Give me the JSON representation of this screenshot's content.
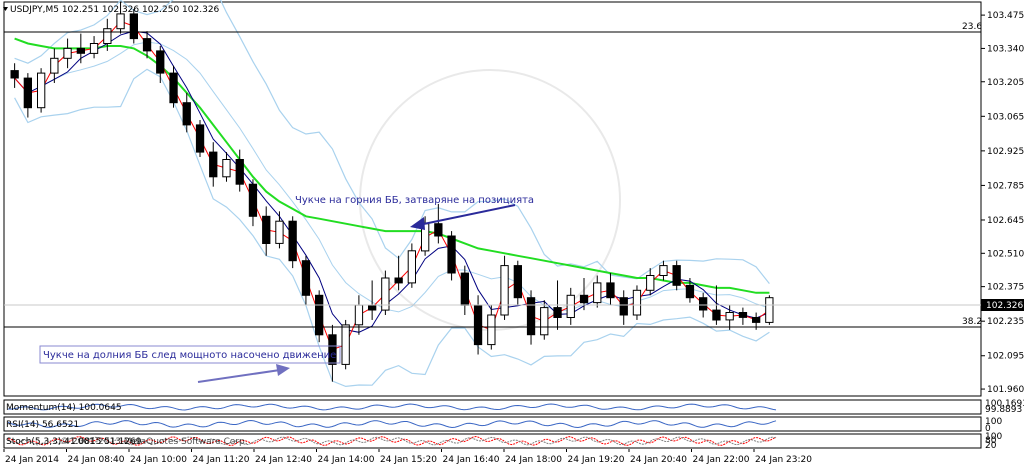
{
  "header": {
    "symbol_line": "USDJPY,M5  102.251 102.326 102.250 102.326"
  },
  "levels": {
    "fib_top_label": "23.6",
    "fib_bottom_label": "38.2",
    "current_price": "102.326"
  },
  "annotations": {
    "upper": "Чукче на горния ББ, затваряне на позицията",
    "lower": "Чукче на долния ББ след мощното насочено движение"
  },
  "indicators": {
    "momentum_label": "Momentum(14) 100.0645",
    "momentum_scale_values": [
      "100.1693",
      "99.8893"
    ],
    "rsi_label": "RSI(14) 56.6521",
    "rsi_scale_values": [
      "100",
      "0"
    ],
    "stoch_label": "Stoch(5,3,3) 41.0815 51.1269",
    "stoch_overlap_text": "© 2001-2013 MetaQuotes Software Corp.",
    "stoch_scale_values": [
      "100",
      "80",
      "20"
    ]
  },
  "colors": {
    "candle": "#000000",
    "ma_fast": "#ff0000",
    "ma_mid": "#000080",
    "ma_long": "#22dd22",
    "bollinger": "#a9d2ee",
    "indicator_line": "#3a66c4",
    "stoch_main": "#ff0000",
    "stoch_signal": "#808080",
    "arrow": "#7070c0"
  },
  "chart_data": {
    "type": "candlestick",
    "symbol": "USDJPY",
    "timeframe": "M5",
    "price_ticks": [
      "103.475",
      "103.340",
      "103.205",
      "103.065",
      "102.925",
      "102.785",
      "102.645",
      "102.510",
      "102.375",
      "102.235",
      "102.095",
      "101.960"
    ],
    "time_ticks": [
      "24 Jan 2014",
      "24 Jan 08:40",
      "24 Jan 10:00",
      "24 Jan 11:20",
      "24 Jan 12:40",
      "24 Jan 14:00",
      "24 Jan 15:20",
      "24 Jan 16:40",
      "24 Jan 18:00",
      "24 Jan 19:20",
      "24 Jan 20:40",
      "24 Jan 22:00",
      "24 Jan 23:20"
    ],
    "ylim": [
      101.94,
      103.52
    ],
    "fib_levels": [
      103.505,
      102.246
    ],
    "candles": [
      {
        "o": 103.25,
        "h": 103.28,
        "l": 103.18,
        "c": 103.22
      },
      {
        "o": 103.22,
        "h": 103.24,
        "l": 103.06,
        "c": 103.1
      },
      {
        "o": 103.1,
        "h": 103.26,
        "l": 103.08,
        "c": 103.24
      },
      {
        "o": 103.24,
        "h": 103.34,
        "l": 103.2,
        "c": 103.3
      },
      {
        "o": 103.3,
        "h": 103.38,
        "l": 103.26,
        "c": 103.34
      },
      {
        "o": 103.34,
        "h": 103.4,
        "l": 103.28,
        "c": 103.32
      },
      {
        "o": 103.32,
        "h": 103.39,
        "l": 103.3,
        "c": 103.36
      },
      {
        "o": 103.36,
        "h": 103.46,
        "l": 103.33,
        "c": 103.42
      },
      {
        "o": 103.42,
        "h": 103.53,
        "l": 103.4,
        "c": 103.48
      },
      {
        "o": 103.48,
        "h": 103.5,
        "l": 103.36,
        "c": 103.38
      },
      {
        "o": 103.38,
        "h": 103.41,
        "l": 103.3,
        "c": 103.33
      },
      {
        "o": 103.33,
        "h": 103.35,
        "l": 103.2,
        "c": 103.24
      },
      {
        "o": 103.24,
        "h": 103.27,
        "l": 103.1,
        "c": 103.12
      },
      {
        "o": 103.12,
        "h": 103.16,
        "l": 103.0,
        "c": 103.03
      },
      {
        "o": 103.03,
        "h": 103.05,
        "l": 102.9,
        "c": 102.92
      },
      {
        "o": 102.92,
        "h": 102.96,
        "l": 102.78,
        "c": 102.82
      },
      {
        "o": 102.82,
        "h": 102.92,
        "l": 102.8,
        "c": 102.89
      },
      {
        "o": 102.89,
        "h": 102.93,
        "l": 102.76,
        "c": 102.79
      },
      {
        "o": 102.79,
        "h": 102.81,
        "l": 102.62,
        "c": 102.66
      },
      {
        "o": 102.66,
        "h": 102.7,
        "l": 102.5,
        "c": 102.55
      },
      {
        "o": 102.55,
        "h": 102.68,
        "l": 102.53,
        "c": 102.64
      },
      {
        "o": 102.64,
        "h": 102.66,
        "l": 102.45,
        "c": 102.48
      },
      {
        "o": 102.48,
        "h": 102.5,
        "l": 102.3,
        "c": 102.34
      },
      {
        "o": 102.34,
        "h": 102.36,
        "l": 102.15,
        "c": 102.18
      },
      {
        "o": 102.18,
        "h": 102.22,
        "l": 101.99,
        "c": 102.06
      },
      {
        "o": 102.06,
        "h": 102.24,
        "l": 102.04,
        "c": 102.22
      },
      {
        "o": 102.22,
        "h": 102.34,
        "l": 102.18,
        "c": 102.3
      },
      {
        "o": 102.3,
        "h": 102.4,
        "l": 102.24,
        "c": 102.28
      },
      {
        "o": 102.28,
        "h": 102.44,
        "l": 102.26,
        "c": 102.41
      },
      {
        "o": 102.41,
        "h": 102.5,
        "l": 102.36,
        "c": 102.39
      },
      {
        "o": 102.39,
        "h": 102.55,
        "l": 102.37,
        "c": 102.52
      },
      {
        "o": 102.52,
        "h": 102.66,
        "l": 102.5,
        "c": 102.63
      },
      {
        "o": 102.63,
        "h": 102.71,
        "l": 102.55,
        "c": 102.58
      },
      {
        "o": 102.58,
        "h": 102.6,
        "l": 102.4,
        "c": 102.43
      },
      {
        "o": 102.43,
        "h": 102.46,
        "l": 102.26,
        "c": 102.3
      },
      {
        "o": 102.3,
        "h": 102.34,
        "l": 102.1,
        "c": 102.14
      },
      {
        "o": 102.14,
        "h": 102.3,
        "l": 102.12,
        "c": 102.26
      },
      {
        "o": 102.26,
        "h": 102.5,
        "l": 102.24,
        "c": 102.46
      },
      {
        "o": 102.46,
        "h": 102.48,
        "l": 102.3,
        "c": 102.33
      },
      {
        "o": 102.33,
        "h": 102.36,
        "l": 102.14,
        "c": 102.18
      },
      {
        "o": 102.18,
        "h": 102.32,
        "l": 102.16,
        "c": 102.29
      },
      {
        "o": 102.29,
        "h": 102.4,
        "l": 102.2,
        "c": 102.25
      },
      {
        "o": 102.25,
        "h": 102.37,
        "l": 102.22,
        "c": 102.34
      },
      {
        "o": 102.34,
        "h": 102.41,
        "l": 102.28,
        "c": 102.31
      },
      {
        "o": 102.31,
        "h": 102.42,
        "l": 102.29,
        "c": 102.39
      },
      {
        "o": 102.39,
        "h": 102.43,
        "l": 102.3,
        "c": 102.33
      },
      {
        "o": 102.33,
        "h": 102.36,
        "l": 102.22,
        "c": 102.26
      },
      {
        "o": 102.26,
        "h": 102.38,
        "l": 102.24,
        "c": 102.36
      },
      {
        "o": 102.36,
        "h": 102.45,
        "l": 102.34,
        "c": 102.42
      },
      {
        "o": 102.42,
        "h": 102.48,
        "l": 102.4,
        "c": 102.46
      },
      {
        "o": 102.46,
        "h": 102.48,
        "l": 102.36,
        "c": 102.38
      },
      {
        "o": 102.38,
        "h": 102.41,
        "l": 102.31,
        "c": 102.33
      },
      {
        "o": 102.33,
        "h": 102.35,
        "l": 102.25,
        "c": 102.28
      },
      {
        "o": 102.28,
        "h": 102.38,
        "l": 102.22,
        "c": 102.24
      },
      {
        "o": 102.24,
        "h": 102.3,
        "l": 102.2,
        "c": 102.27
      },
      {
        "o": 102.27,
        "h": 102.29,
        "l": 102.22,
        "c": 102.25
      },
      {
        "o": 102.25,
        "h": 102.27,
        "l": 102.2,
        "c": 102.23
      },
      {
        "o": 102.23,
        "h": 102.34,
        "l": 102.22,
        "c": 102.33
      }
    ],
    "ma_long": [
      103.38,
      103.36,
      103.35,
      103.34,
      103.34,
      103.34,
      103.34,
      103.35,
      103.35,
      103.34,
      103.31,
      103.27,
      103.22,
      103.16,
      103.1,
      103.03,
      102.96,
      102.89,
      102.82,
      102.76,
      102.72,
      102.69,
      102.66,
      102.65,
      102.64,
      102.63,
      102.62,
      102.61,
      102.6,
      102.6,
      102.6,
      102.6,
      102.59,
      102.57,
      102.55,
      102.53,
      102.52,
      102.51,
      102.5,
      102.49,
      102.48,
      102.47,
      102.46,
      102.45,
      102.44,
      102.43,
      102.42,
      102.41,
      102.41,
      102.4,
      102.39,
      102.39,
      102.38,
      102.37,
      102.37,
      102.36,
      102.35,
      102.35
    ]
  }
}
